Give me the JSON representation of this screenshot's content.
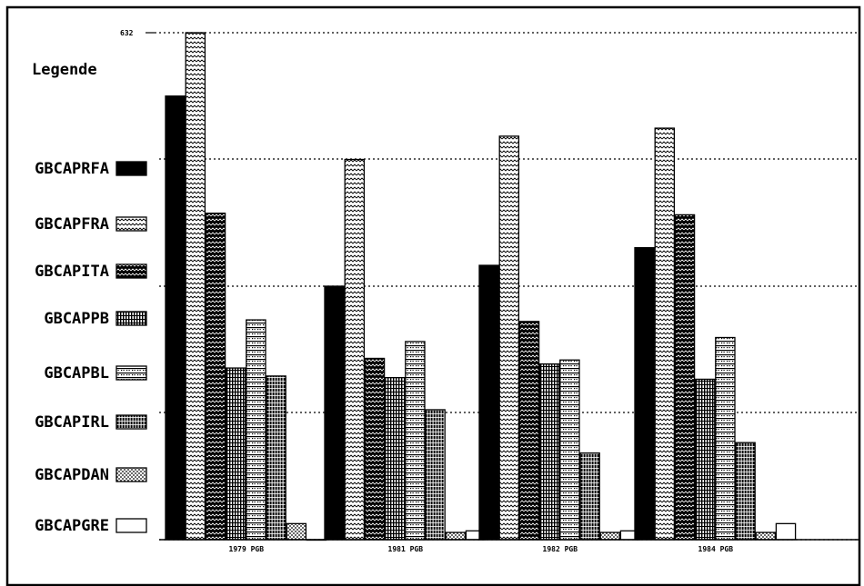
{
  "chart_data": {
    "type": "bar",
    "title": "",
    "legend_title": "Legende",
    "legend_position": "left",
    "grid": true,
    "categories": [
      "1979 PGB",
      "1981 PGB",
      "1982 PGB",
      "1984 PGB"
    ],
    "y_tick_labels": [
      "632"
    ],
    "ylim": [
      0,
      632
    ],
    "series": [
      {
        "name": "GBCAPRFA",
        "pattern": "solid",
        "values": [
          553,
          316,
          342,
          364
        ]
      },
      {
        "name": "GBCAPFRA",
        "pattern": "zigzag",
        "values": [
          632,
          474,
          503,
          513
        ]
      },
      {
        "name": "GBCAPITA",
        "pattern": "dark-zigzag",
        "values": [
          407,
          226,
          272,
          405
        ]
      },
      {
        "name": "GBCAPPB",
        "pattern": "vlines",
        "values": [
          214,
          202,
          219,
          200
        ]
      },
      {
        "name": "GBCAPBL",
        "pattern": "grid",
        "values": [
          274,
          247,
          224,
          252
        ]
      },
      {
        "name": "GBCAPIRL",
        "pattern": "dark-vlines",
        "values": [
          204,
          162,
          108,
          121
        ]
      },
      {
        "name": "GBCAPDAN",
        "pattern": "dots",
        "values": [
          20,
          9,
          9,
          9
        ]
      },
      {
        "name": "GBCAPGRE",
        "pattern": "empty",
        "values": [
          0,
          11,
          11,
          20
        ]
      }
    ]
  }
}
